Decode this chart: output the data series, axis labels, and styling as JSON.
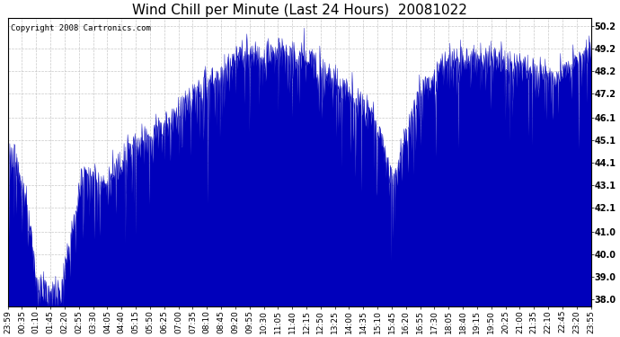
{
  "title": "Wind Chill per Minute (Last 24 Hours)  20081022",
  "copyright": "Copyright 2008 Cartronics.com",
  "yticks": [
    38.0,
    39.0,
    40.0,
    41.0,
    42.1,
    43.1,
    44.1,
    45.1,
    46.1,
    47.2,
    48.2,
    49.2,
    50.2
  ],
  "ymin": 37.7,
  "ymax": 50.55,
  "line_color": "#0000bb",
  "fill_color": "#0000bb",
  "bg_color": "#ffffff",
  "grid_color": "#bbbbbb",
  "title_fontsize": 11,
  "copyright_fontsize": 6.5,
  "tick_fontsize": 7,
  "x_tick_labels": [
    "23:59",
    "00:35",
    "01:10",
    "01:45",
    "02:20",
    "02:55",
    "03:30",
    "04:05",
    "04:40",
    "05:15",
    "05:50",
    "06:25",
    "07:00",
    "07:35",
    "08:10",
    "08:45",
    "09:20",
    "09:55",
    "10:30",
    "11:05",
    "11:40",
    "12:15",
    "12:50",
    "13:25",
    "14:00",
    "14:35",
    "15:10",
    "15:45",
    "16:20",
    "16:55",
    "17:30",
    "18:05",
    "18:40",
    "19:15",
    "19:50",
    "20:25",
    "21:00",
    "21:35",
    "22:10",
    "22:45",
    "23:20",
    "23:55"
  ]
}
